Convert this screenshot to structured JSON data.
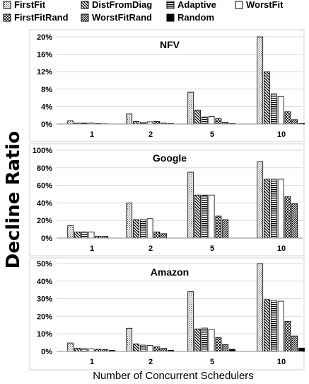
{
  "figure": {
    "ylabel": "Decline Ratio",
    "xlabel": "Number of Concurrent Schedulers"
  },
  "legend": [
    {
      "name": "FirstFit",
      "pattern": "dots"
    },
    {
      "name": "DistFromDiag",
      "pattern": "diag-back"
    },
    {
      "name": "Adaptive",
      "pattern": "horizontal"
    },
    {
      "name": "WorstFit",
      "pattern": "white"
    },
    {
      "name": "FirstFitRand",
      "pattern": "checker"
    },
    {
      "name": "WorstFitRand",
      "pattern": "diag-fwd"
    },
    {
      "name": "Random",
      "pattern": "black"
    }
  ],
  "chart_data": [
    {
      "type": "bar",
      "title": "NFV",
      "categories": [
        "1",
        "2",
        "5",
        "10"
      ],
      "yticks": [
        "0%",
        "4%",
        "8%",
        "12%",
        "16%",
        "20%"
      ],
      "ylim": [
        0,
        20
      ],
      "series": [
        {
          "name": "FirstFit",
          "values": [
            0.7,
            2.3,
            7.3,
            20.0
          ]
        },
        {
          "name": "DistFromDiag",
          "values": [
            0.2,
            0.6,
            3.2,
            12.0
          ]
        },
        {
          "name": "Adaptive",
          "values": [
            0.2,
            0.4,
            1.6,
            6.9
          ]
        },
        {
          "name": "WorstFit",
          "values": [
            0.2,
            0.5,
            1.7,
            6.3
          ]
        },
        {
          "name": "FirstFitRand",
          "values": [
            0.1,
            0.6,
            1.2,
            2.8
          ]
        },
        {
          "name": "WorstFitRand",
          "values": [
            0.05,
            0.2,
            0.4,
            1.0
          ]
        },
        {
          "name": "Random",
          "values": [
            0.0,
            0.1,
            0.1,
            0.1
          ]
        }
      ]
    },
    {
      "type": "bar",
      "title": "Google",
      "categories": [
        "1",
        "2",
        "5",
        "10"
      ],
      "yticks": [
        "0%",
        "20%",
        "40%",
        "60%",
        "80%",
        "100%"
      ],
      "ylim": [
        0,
        100
      ],
      "series": [
        {
          "name": "FirstFit",
          "values": [
            14,
            40,
            75,
            87
          ]
        },
        {
          "name": "DistFromDiag",
          "values": [
            7,
            21,
            49,
            67
          ]
        },
        {
          "name": "Adaptive",
          "values": [
            7,
            21,
            49,
            67
          ]
        },
        {
          "name": "WorstFit",
          "values": [
            7,
            22,
            49,
            67
          ]
        },
        {
          "name": "FirstFitRand",
          "values": [
            2,
            7,
            25,
            47
          ]
        },
        {
          "name": "WorstFitRand",
          "values": [
            2,
            5,
            21,
            39
          ]
        },
        {
          "name": "Random",
          "values": [
            0,
            0,
            0,
            0
          ]
        }
      ]
    },
    {
      "type": "bar",
      "title": "Amazon",
      "categories": [
        "1",
        "2",
        "5",
        "10"
      ],
      "yticks": [
        "0%",
        "10%",
        "20%",
        "30%",
        "40%",
        "50%"
      ],
      "ylim": [
        0,
        50
      ],
      "series": [
        {
          "name": "FirstFit",
          "values": [
            4.8,
            13.2,
            34.0,
            50.0
          ]
        },
        {
          "name": "DistFromDiag",
          "values": [
            1.8,
            4.3,
            12.8,
            29.5
          ]
        },
        {
          "name": "Adaptive",
          "values": [
            1.5,
            3.6,
            13.3,
            29.0
          ]
        },
        {
          "name": "WorstFit",
          "values": [
            1.4,
            3.4,
            12.5,
            28.6
          ]
        },
        {
          "name": "FirstFitRand",
          "values": [
            1.2,
            2.6,
            7.8,
            17.2
          ]
        },
        {
          "name": "WorstFitRand",
          "values": [
            1.0,
            1.8,
            3.9,
            8.8
          ]
        },
        {
          "name": "Random",
          "values": [
            0.6,
            0.7,
            1.2,
            1.9
          ]
        }
      ]
    }
  ]
}
